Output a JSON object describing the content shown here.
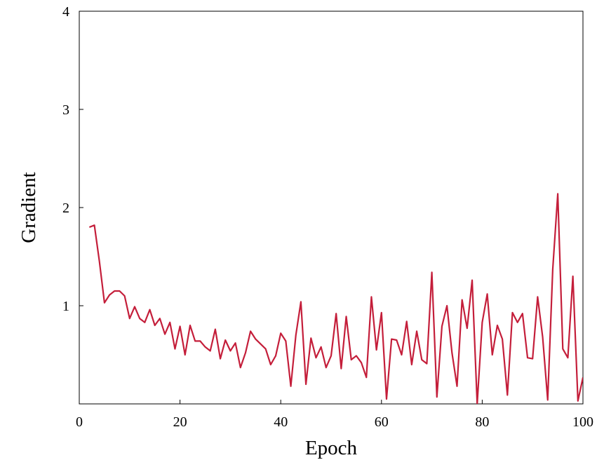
{
  "chart_data": {
    "type": "line",
    "x_label": "Epoch",
    "y_label": "Gradient",
    "xlim": [
      0,
      100
    ],
    "xticks": [
      0,
      20,
      40,
      60,
      80,
      100
    ],
    "ylim": [
      0,
      4
    ],
    "yticks": [
      1,
      2,
      3,
      4
    ],
    "x": [
      2,
      3,
      4,
      5,
      6,
      7,
      8,
      9,
      10,
      11,
      12,
      13,
      14,
      15,
      16,
      17,
      18,
      19,
      20,
      21,
      22,
      23,
      24,
      25,
      26,
      27,
      28,
      29,
      30,
      31,
      32,
      33,
      34,
      35,
      36,
      37,
      38,
      39,
      40,
      41,
      42,
      43,
      44,
      45,
      46,
      47,
      48,
      49,
      50,
      51,
      52,
      53,
      54,
      55,
      56,
      57,
      58,
      59,
      60,
      61,
      62,
      63,
      64,
      65,
      66,
      67,
      68,
      69,
      70,
      71,
      72,
      73,
      74,
      75,
      76,
      77,
      78,
      79,
      80,
      81,
      82,
      83,
      84,
      85,
      86,
      87,
      88,
      89,
      90,
      91,
      92,
      93,
      94,
      95,
      96,
      97,
      98,
      99,
      100
    ],
    "series": [
      {
        "color": "#c41e3a",
        "values": [
          1.8,
          1.82,
          1.45,
          1.03,
          1.11,
          1.15,
          1.15,
          1.1,
          0.87,
          0.99,
          0.87,
          0.83,
          0.96,
          0.8,
          0.87,
          0.71,
          0.83,
          0.56,
          0.79,
          0.5,
          0.8,
          0.64,
          0.64,
          0.58,
          0.54,
          0.76,
          0.46,
          0.65,
          0.54,
          0.62,
          0.37,
          0.52,
          0.74,
          0.66,
          0.61,
          0.56,
          0.4,
          0.49,
          0.72,
          0.64,
          0.18,
          0.7,
          1.04,
          0.2,
          0.67,
          0.47,
          0.58,
          0.37,
          0.49,
          0.92,
          0.36,
          0.89,
          0.45,
          0.49,
          0.42,
          0.27,
          1.09,
          0.55,
          0.93,
          0.05,
          0.66,
          0.65,
          0.5,
          0.84,
          0.4,
          0.74,
          0.45,
          0.41,
          1.34,
          0.07,
          0.79,
          1.0,
          0.52,
          0.18,
          1.06,
          0.77,
          1.26,
          0.0,
          0.83,
          1.12,
          0.5,
          0.8,
          0.66,
          0.09,
          0.93,
          0.83,
          0.92,
          0.47,
          0.46,
          1.09,
          0.68,
          0.04,
          1.37,
          2.14,
          0.56,
          0.47,
          1.3,
          0.03,
          0.27
        ]
      }
    ]
  }
}
